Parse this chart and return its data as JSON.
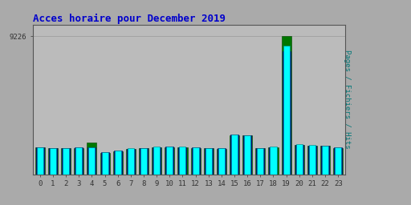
{
  "title": "Acces horaire pour December 2019",
  "ylabel": "Pages / Fichiers / Hits",
  "categories": [
    0,
    1,
    2,
    3,
    4,
    5,
    6,
    7,
    8,
    9,
    10,
    11,
    12,
    13,
    14,
    15,
    16,
    17,
    18,
    19,
    20,
    21,
    22,
    23
  ],
  "hits": [
    1820,
    1760,
    1760,
    1800,
    1820,
    1480,
    1580,
    1720,
    1760,
    1840,
    1860,
    1840,
    1800,
    1760,
    1740,
    2650,
    2620,
    1760,
    1840,
    8600,
    2000,
    1940,
    1920,
    1800
  ],
  "fichiers": [
    1800,
    1740,
    1740,
    1780,
    1800,
    1460,
    1560,
    1700,
    1740,
    1820,
    1840,
    1820,
    1780,
    1740,
    1720,
    2630,
    2600,
    1740,
    1820,
    8200,
    1980,
    1920,
    1900,
    1780
  ],
  "pages": [
    1780,
    1720,
    1720,
    1760,
    2100,
    1440,
    1540,
    1680,
    1720,
    1800,
    1820,
    1800,
    1760,
    1720,
    1700,
    2610,
    2580,
    1720,
    1800,
    9226,
    1960,
    1900,
    1880,
    1760
  ],
  "ymax": 10000,
  "ytick_val": 9226,
  "hits_color": "#00FFFF",
  "fichiers_color": "#0000BB",
  "pages_color": "#007700",
  "bg_color": "#AAAAAA",
  "plot_bg": "#BBBBBB",
  "title_color": "#0000CC",
  "ylabel_color": "#007777",
  "grid_color": "#999999",
  "border_color": "#555555",
  "tick_color": "#333333"
}
